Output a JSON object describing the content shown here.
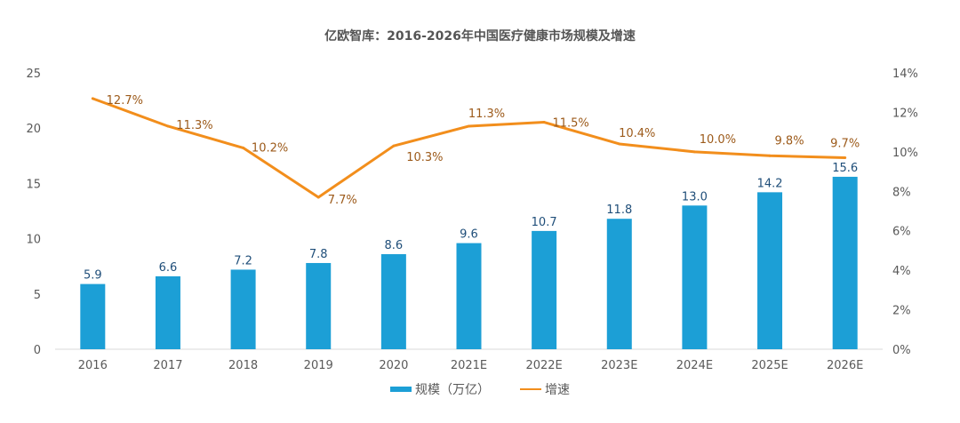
{
  "chart_data": {
    "type": "bar+line",
    "title": "亿欧智库：2016-2026年中国医疗健康市场规模及增速",
    "categories": [
      "2016",
      "2017",
      "2018",
      "2019",
      "2020",
      "2021E",
      "2022E",
      "2023E",
      "2024E",
      "2025E",
      "2026E"
    ],
    "series": [
      {
        "name": "规模（万亿）",
        "type": "bar",
        "axis": "left",
        "color": "#1c9fd6",
        "values": [
          5.9,
          6.6,
          7.2,
          7.8,
          8.6,
          9.6,
          10.7,
          11.8,
          13.0,
          14.2,
          15.6
        ],
        "labels": [
          "5.9",
          "6.6",
          "7.2",
          "7.8",
          "8.6",
          "9.6",
          "10.7",
          "11.8",
          "13.0",
          "14.2",
          "15.6"
        ]
      },
      {
        "name": "增速",
        "type": "line",
        "axis": "right",
        "color": "#f28e1c",
        "values": [
          12.7,
          11.3,
          10.2,
          7.7,
          10.3,
          11.3,
          11.5,
          10.4,
          10.0,
          9.8,
          9.7
        ],
        "labels": [
          "12.7%",
          "11.3%",
          "10.2%",
          "7.7%",
          "10.3%",
          "11.3%",
          "11.5%",
          "10.4%",
          "10.0%",
          "9.8%",
          "9.7%"
        ]
      }
    ],
    "y_left": {
      "range": [
        0,
        25
      ],
      "ticks": [
        "0",
        "5",
        "10",
        "15",
        "20",
        "25"
      ]
    },
    "y_right": {
      "range": [
        0,
        14
      ],
      "ticks": [
        "0%",
        "2%",
        "4%",
        "6%",
        "8%",
        "10%",
        "12%",
        "14%"
      ]
    },
    "grid": false,
    "legend_position": "bottom"
  }
}
